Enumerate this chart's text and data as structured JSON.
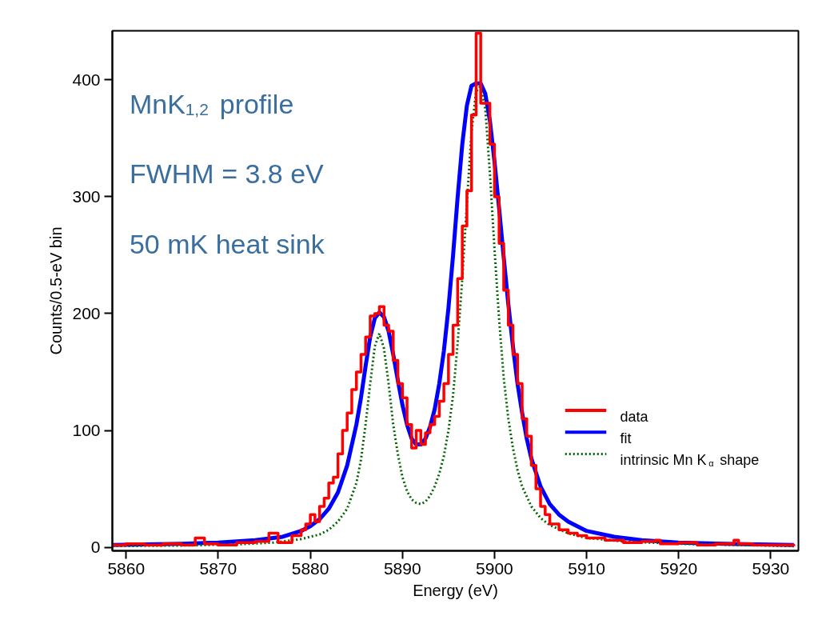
{
  "chart_data": {
    "type": "line",
    "xlabel": "Energy (eV)",
    "ylabel": "Counts/0.5-eV bin",
    "annotations": [
      "MnK$_{1,2}$ profile",
      "FWHM = 3.8 eV",
      "50 mK heat sink"
    ],
    "xlim": [
      5858.5,
      5933
    ],
    "ylim": [
      -3,
      442
    ],
    "xticks": [
      5860,
      5870,
      5880,
      5890,
      5900,
      5910,
      5920,
      5930
    ],
    "yticks": [
      0,
      100,
      200,
      300,
      400
    ],
    "grid": false,
    "legend": "bottom right",
    "series": [
      {
        "name": "data",
        "type": "step",
        "color": "#ff0000",
        "line_style": "solid",
        "x": [
          5858.5,
          5860,
          5862,
          5864,
          5866,
          5867.5,
          5868.5,
          5870,
          5872,
          5874,
          5875.5,
          5876.5,
          5878,
          5879,
          5879.5,
          5880,
          5880.5,
          5881,
          5881.5,
          5882,
          5882.5,
          5883,
          5883.5,
          5884,
          5884.5,
          5885,
          5885.5,
          5886,
          5886.5,
          5887,
          5887.5,
          5888,
          5888.5,
          5889,
          5889.5,
          5890,
          5890.5,
          5891,
          5891.5,
          5892,
          5892.5,
          5893,
          5893.5,
          5894,
          5894.5,
          5895,
          5895.5,
          5896,
          5896.5,
          5897,
          5897.5,
          5898,
          5898.5,
          5899,
          5899.5,
          5900,
          5900.5,
          5901,
          5901.5,
          5902,
          5902.5,
          5903,
          5903.5,
          5904,
          5904.5,
          5905,
          5905.5,
          5906,
          5907,
          5908,
          5909,
          5910,
          5912,
          5914,
          5916,
          5917.5,
          5918,
          5920,
          5922,
          5924,
          5926,
          5926.5,
          5928,
          5930,
          5932.5
        ],
        "values": [
          2,
          3,
          2,
          3,
          2,
          8,
          3,
          2,
          4,
          5,
          12,
          4,
          10,
          15,
          20,
          28,
          22,
          35,
          42,
          55,
          60,
          80,
          100,
          115,
          135,
          150,
          165,
          180,
          198,
          200,
          206,
          190,
          185,
          160,
          140,
          128,
          105,
          85,
          100,
          88,
          98,
          105,
          112,
          125,
          140,
          165,
          190,
          230,
          275,
          305,
          370,
          440,
          380,
          380,
          345,
          300,
          260,
          220,
          190,
          165,
          140,
          110,
          95,
          70,
          50,
          35,
          28,
          20,
          15,
          12,
          10,
          8,
          6,
          4,
          5,
          6,
          3,
          4,
          2,
          3,
          6,
          3,
          2,
          2,
          1
        ]
      },
      {
        "name": "fit",
        "color": "#0000ff",
        "line_style": "solid",
        "x": [
          5858.5,
          5862,
          5866,
          5870,
          5874,
          5877,
          5879,
          5880,
          5881,
          5882,
          5883,
          5884,
          5885,
          5885.5,
          5886,
          5886.5,
          5887,
          5887.5,
          5888,
          5888.5,
          5889,
          5889.5,
          5890,
          5890.5,
          5891,
          5891.5,
          5892,
          5892.5,
          5893,
          5893.5,
          5894,
          5894.5,
          5895,
          5895.5,
          5896,
          5896.5,
          5897,
          5897.5,
          5898,
          5898.5,
          5899,
          5899.5,
          5900,
          5900.5,
          5901,
          5901.5,
          5902,
          5902.5,
          5903,
          5903.5,
          5904,
          5905,
          5906,
          5907,
          5908,
          5910,
          5913,
          5916,
          5920,
          5925,
          5932.5
        ],
        "values": [
          2,
          2.5,
          3,
          4,
          6,
          9,
          14,
          18,
          24,
          33,
          47,
          70,
          105,
          128,
          155,
          180,
          196,
          201,
          197,
          185,
          165,
          143,
          122,
          105,
          93,
          88,
          88,
          93,
          103,
          118,
          140,
          168,
          205,
          250,
          300,
          345,
          378,
          395,
          397,
          397,
          388,
          365,
          330,
          290,
          248,
          208,
          172,
          140,
          115,
          93,
          76,
          52,
          37,
          28,
          22,
          14,
          9,
          6,
          4,
          3,
          2
        ]
      },
      {
        "name": "intrinsic Mn K$_{α}$ shape",
        "color": "#006400",
        "line_style": "dotted",
        "x": [
          5858.5,
          5866,
          5872,
          5876,
          5879,
          5881,
          5882,
          5883,
          5884,
          5885,
          5885.5,
          5886,
          5886.5,
          5887,
          5887.5,
          5888,
          5888.5,
          5889,
          5889.5,
          5890,
          5890.5,
          5891,
          5891.5,
          5892,
          5892.5,
          5893,
          5893.5,
          5894,
          5894.5,
          5895,
          5895.5,
          5896,
          5896.5,
          5897,
          5897.5,
          5898,
          5898.5,
          5899,
          5899.5,
          5900,
          5900.5,
          5901,
          5901.5,
          5902,
          5902.5,
          5903,
          5904,
          5905,
          5906,
          5908,
          5910,
          5914,
          5920,
          5932.5
        ],
        "values": [
          1,
          1.5,
          2.5,
          4,
          7,
          11,
          15,
          22,
          33,
          55,
          75,
          105,
          140,
          172,
          183,
          170,
          140,
          105,
          80,
          60,
          48,
          41,
          38,
          37,
          39,
          44,
          52,
          63,
          78,
          100,
          130,
          175,
          230,
          295,
          355,
          390,
          395,
          375,
          320,
          255,
          195,
          145,
          110,
          85,
          66,
          52,
          35,
          25,
          19,
          12,
          8,
          5,
          3,
          1
        ]
      }
    ]
  }
}
